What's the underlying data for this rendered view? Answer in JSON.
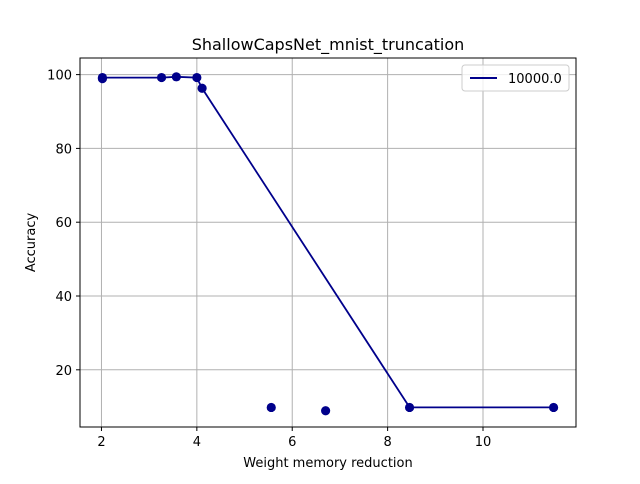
{
  "chart_data": {
    "type": "scatter",
    "title": "ShallowCapsNet_mnist_truncation",
    "xlabel": "Weight memory reduction",
    "ylabel": "Accuracy",
    "xlim": [
      1.55,
      11.95
    ],
    "ylim": [
      4.5,
      104.5
    ],
    "xticks": [
      2,
      4,
      6,
      8,
      10
    ],
    "yticks": [
      20,
      40,
      60,
      80,
      100
    ],
    "grid": true,
    "legend": {
      "placement": "top-right",
      "entries": [
        "10000.0"
      ]
    },
    "colors": {
      "series": "#00008b",
      "grid": "#b0b0b0",
      "axes": "#000000"
    },
    "points": [
      {
        "x": 2.02,
        "y": 99.2
      },
      {
        "x": 2.02,
        "y": 98.9
      },
      {
        "x": 3.26,
        "y": 99.2
      },
      {
        "x": 3.57,
        "y": 99.4
      },
      {
        "x": 4.0,
        "y": 99.2
      },
      {
        "x": 4.11,
        "y": 96.3
      },
      {
        "x": 5.56,
        "y": 9.8
      },
      {
        "x": 6.7,
        "y": 8.9
      },
      {
        "x": 8.46,
        "y": 9.8
      },
      {
        "x": 11.48,
        "y": 9.8
      }
    ],
    "series": [
      {
        "name": "10000.0",
        "x": [
          2.02,
          3.26,
          3.57,
          4.0,
          4.11,
          8.46,
          11.48
        ],
        "y": [
          99.2,
          99.2,
          99.4,
          99.2,
          96.3,
          9.8,
          9.8
        ]
      }
    ]
  }
}
